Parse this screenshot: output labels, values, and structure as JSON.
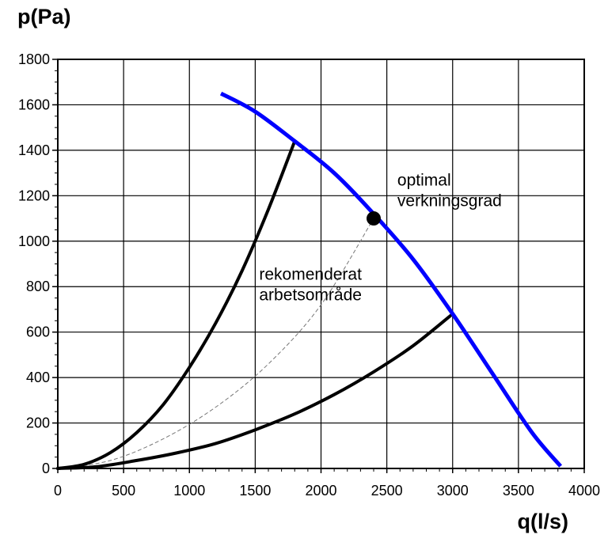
{
  "chart_data": {
    "type": "line",
    "title": "",
    "xlabel": "q(l/s)",
    "ylabel": "p(Pa)",
    "xlim": [
      0,
      4000
    ],
    "ylim": [
      0,
      1800
    ],
    "xticks": [
      0,
      500,
      1000,
      1500,
      2000,
      2500,
      3000,
      3500,
      4000
    ],
    "yticks": [
      0,
      200,
      400,
      600,
      800,
      1000,
      1200,
      1400,
      1600,
      1800
    ],
    "grid": true,
    "colors": {
      "fan_curve": "#0000ff",
      "system_curve": "#000000",
      "optimal_curve": "#777777"
    },
    "series": [
      {
        "name": "fan-curve",
        "style": "thick-blue",
        "points": [
          [
            1240,
            1650
          ],
          [
            1500,
            1570
          ],
          [
            1800,
            1440
          ],
          [
            2100,
            1300
          ],
          [
            2400,
            1120
          ],
          [
            2700,
            920
          ],
          [
            3000,
            680
          ],
          [
            3300,
            420
          ],
          [
            3600,
            160
          ],
          [
            3820,
            10
          ]
        ]
      },
      {
        "name": "system-curve-upper",
        "style": "thick-black",
        "points": [
          [
            0,
            0
          ],
          [
            200,
            18
          ],
          [
            400,
            70
          ],
          [
            600,
            158
          ],
          [
            800,
            280
          ],
          [
            1000,
            445
          ],
          [
            1200,
            640
          ],
          [
            1400,
            870
          ],
          [
            1600,
            1140
          ],
          [
            1800,
            1440
          ]
        ]
      },
      {
        "name": "system-curve-lower",
        "style": "thick-black",
        "points": [
          [
            0,
            0
          ],
          [
            300,
            8
          ],
          [
            600,
            35
          ],
          [
            900,
            68
          ],
          [
            1200,
            110
          ],
          [
            1500,
            170
          ],
          [
            1800,
            240
          ],
          [
            2100,
            325
          ],
          [
            2400,
            425
          ],
          [
            2700,
            540
          ],
          [
            3000,
            680
          ]
        ]
      },
      {
        "name": "optimal-curve",
        "style": "thin-dashed-gray",
        "points": [
          [
            0,
            0
          ],
          [
            400,
            35
          ],
          [
            800,
            130
          ],
          [
            1200,
            270
          ],
          [
            1600,
            460
          ],
          [
            2000,
            720
          ],
          [
            2400,
            1100
          ]
        ]
      }
    ],
    "marker": {
      "name": "optimal-point",
      "x": 2400,
      "y": 1100
    },
    "annotations": [
      {
        "name": "optimal-label",
        "lines": [
          "optimal",
          "verkningsgrad"
        ],
        "x": 2580,
        "y": 1245
      },
      {
        "name": "range-label",
        "lines": [
          "rekomenderat",
          "arbetsområde"
        ],
        "x": 1530,
        "y": 830
      }
    ]
  }
}
